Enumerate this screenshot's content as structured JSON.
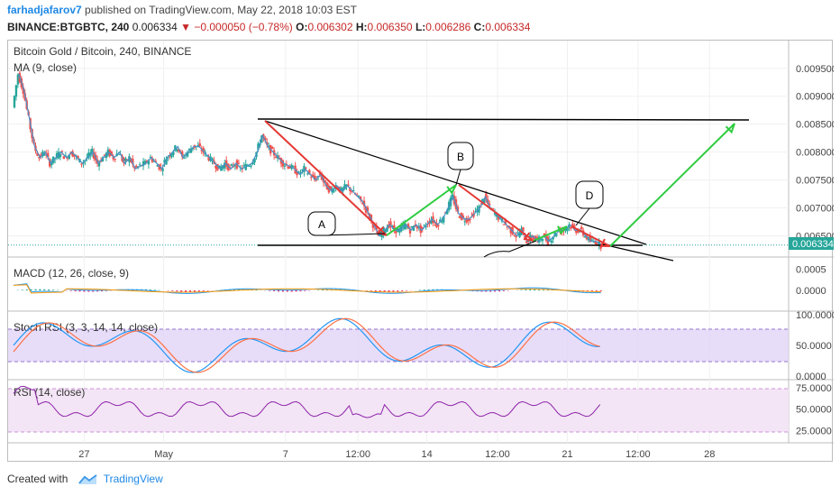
{
  "header": {
    "author": "farhadjafarov7",
    "published": " published on TradingView.com, May 22, 2018 10:03 EST",
    "symbol": "BINANCE:BTGBTC, 240",
    "last": "0.006334",
    "change": "−0.000050 (−0.78%)",
    "o_label": "O:",
    "o_val": "0.006302",
    "h_label": "H:",
    "h_val": "0.006350",
    "l_label": "L:",
    "l_val": "0.006286",
    "c_label": "C:",
    "c_val": "0.006334"
  },
  "chart_data": [
    {
      "type": "candlestick",
      "title": "Bitcoin Gold / Bitcoin, 240, BINANCE",
      "indicator": "MA (9, close)",
      "yticks": [
        "0.009500",
        "0.009000",
        "0.008500",
        "0.008000",
        "0.007500",
        "0.007000",
        "0.006500"
      ],
      "ylim": [
        0.00625,
        0.0099
      ],
      "last_price_label": "0.006334",
      "last_price": 0.006334,
      "close_path": [
        [
          0,
          0.0088
        ],
        [
          6,
          0.0094
        ],
        [
          12,
          0.0091
        ],
        [
          18,
          0.0086
        ],
        [
          24,
          0.0081
        ],
        [
          30,
          0.0079
        ],
        [
          36,
          0.008
        ],
        [
          42,
          0.0078
        ],
        [
          48,
          0.0079
        ],
        [
          54,
          0.008
        ],
        [
          60,
          0.0079
        ],
        [
          66,
          0.008
        ],
        [
          72,
          0.0079
        ],
        [
          78,
          0.0078
        ],
        [
          84,
          0.0079
        ],
        [
          90,
          0.008
        ],
        [
          96,
          0.0078
        ],
        [
          102,
          0.0079
        ],
        [
          108,
          0.008
        ],
        [
          114,
          0.0079
        ],
        [
          120,
          0.008
        ],
        [
          126,
          0.0078
        ],
        [
          132,
          0.0079
        ],
        [
          138,
          0.0077
        ],
        [
          144,
          0.00775
        ],
        [
          150,
          0.0078
        ],
        [
          156,
          0.0079
        ],
        [
          162,
          0.0078
        ],
        [
          168,
          0.0077
        ],
        [
          174,
          0.0079
        ],
        [
          180,
          0.008
        ],
        [
          186,
          0.0081
        ],
        [
          192,
          0.0079
        ],
        [
          198,
          0.008
        ],
        [
          204,
          0.0081
        ],
        [
          210,
          0.0081
        ],
        [
          216,
          0.008
        ],
        [
          222,
          0.0079
        ],
        [
          228,
          0.0078
        ],
        [
          234,
          0.0077
        ],
        [
          240,
          0.0078
        ],
        [
          246,
          0.0077
        ],
        [
          252,
          0.0078
        ],
        [
          258,
          0.0077
        ],
        [
          264,
          0.00775
        ],
        [
          270,
          0.0078
        ],
        [
          276,
          0.008
        ],
        [
          282,
          0.0083
        ],
        [
          288,
          0.0081
        ],
        [
          294,
          0.008
        ],
        [
          300,
          0.0079
        ],
        [
          306,
          0.0078
        ],
        [
          312,
          0.00775
        ],
        [
          318,
          0.0077
        ],
        [
          324,
          0.0076
        ],
        [
          330,
          0.0077
        ],
        [
          336,
          0.0076
        ],
        [
          342,
          0.0075
        ],
        [
          348,
          0.0076
        ],
        [
          354,
          0.0074
        ],
        [
          360,
          0.0073
        ],
        [
          366,
          0.0074
        ],
        [
          372,
          0.0073
        ],
        [
          378,
          0.0074
        ],
        [
          384,
          0.0073
        ],
        [
          390,
          0.0072
        ],
        [
          396,
          0.0071
        ],
        [
          402,
          0.0069
        ],
        [
          408,
          0.0067
        ],
        [
          414,
          0.0065
        ],
        [
          420,
          0.0066
        ],
        [
          426,
          0.0067
        ],
        [
          432,
          0.0066
        ],
        [
          438,
          0.0066
        ],
        [
          444,
          0.0067
        ],
        [
          450,
          0.0066
        ],
        [
          456,
          0.0067
        ],
        [
          462,
          0.0066
        ],
        [
          468,
          0.0067
        ],
        [
          474,
          0.0068
        ],
        [
          480,
          0.0067
        ],
        [
          486,
          0.0068
        ],
        [
          492,
          0.007
        ],
        [
          498,
          0.0072
        ],
        [
          504,
          0.0069
        ],
        [
          510,
          0.0068
        ],
        [
          516,
          0.0068
        ],
        [
          522,
          0.0069
        ],
        [
          528,
          0.007
        ],
        [
          534,
          0.0072
        ],
        [
          540,
          0.007
        ],
        [
          546,
          0.0069
        ],
        [
          552,
          0.0068
        ],
        [
          558,
          0.0067
        ],
        [
          564,
          0.0066
        ],
        [
          570,
          0.0065
        ],
        [
          576,
          0.0066
        ],
        [
          582,
          0.0064
        ],
        [
          588,
          0.0065
        ],
        [
          594,
          0.0064
        ],
        [
          600,
          0.0065
        ],
        [
          606,
          0.0064
        ],
        [
          612,
          0.0065
        ],
        [
          618,
          0.0066
        ],
        [
          624,
          0.0066
        ],
        [
          630,
          0.0067
        ],
        [
          636,
          0.0066
        ],
        [
          642,
          0.0066
        ],
        [
          648,
          0.0065
        ],
        [
          654,
          0.0064
        ],
        [
          660,
          0.0064
        ],
        [
          666,
          0.00633
        ]
      ],
      "annotations": [
        "A",
        "B",
        "D"
      ]
    },
    {
      "type": "line",
      "title": "MACD (12, 26, close, 9)",
      "yticks": [
        "0.0005",
        "0.0000"
      ],
      "ylim": [
        -0.0004,
        0.0007
      ]
    },
    {
      "type": "line",
      "title": "Stoch RSI (3, 3, 14, 14, close)",
      "yticks": [
        "100.0000",
        "50.0000",
        "0.0000"
      ],
      "ylim": [
        0,
        100
      ],
      "band": [
        20,
        80
      ]
    },
    {
      "type": "line",
      "title": "RSI (14, close)",
      "yticks": [
        "75.0000",
        "50.0000",
        "25.0000"
      ],
      "ylim": [
        15,
        80
      ],
      "band": [
        30,
        70
      ]
    }
  ],
  "xaxis": {
    "ticks": [
      {
        "label": "27",
        "t": 80
      },
      {
        "label": "May",
        "t": 170
      },
      {
        "label": "7",
        "t": 308
      },
      {
        "label": "12:00",
        "t": 390
      },
      {
        "label": "14",
        "t": 468
      },
      {
        "label": "12:00",
        "t": 548
      },
      {
        "label": "21",
        "t": 627
      },
      {
        "label": "12:00",
        "t": 707
      },
      {
        "label": "28",
        "t": 788
      }
    ]
  },
  "footer": {
    "created": "Created with",
    "brand": "TradingView"
  }
}
